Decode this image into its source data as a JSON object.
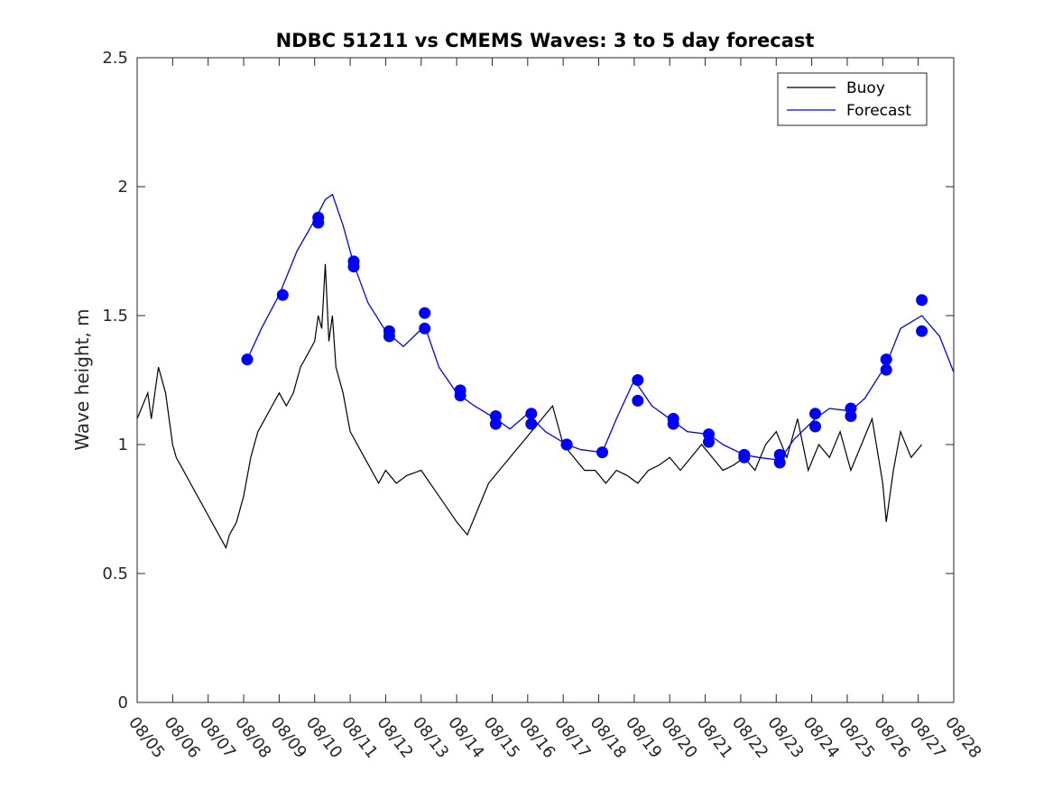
{
  "chart_data": {
    "type": "line",
    "title": "NDBC 51211 vs CMEMS Waves: 3 to 5 day forecast",
    "xlabel": "",
    "ylabel": "Wave height, m",
    "xlim": [
      0,
      23
    ],
    "ylim": [
      0,
      2.5
    ],
    "x_tick_labels": [
      "08/05",
      "08/06",
      "08/07",
      "08/08",
      "08/09",
      "08/10",
      "08/11",
      "08/12",
      "08/13",
      "08/14",
      "08/15",
      "08/16",
      "08/17",
      "08/18",
      "08/19",
      "08/20",
      "08/21",
      "08/22",
      "08/23",
      "08/24",
      "08/25",
      "08/26",
      "08/27",
      "08/28"
    ],
    "y_ticks": [
      0,
      0.5,
      1,
      1.5,
      2,
      2.5
    ],
    "y_tick_labels": [
      "0",
      "0.5",
      "1",
      "1.5",
      "2",
      "2.5"
    ],
    "legend": {
      "position": "top-right",
      "entries": [
        "Buoy",
        "Forecast"
      ]
    },
    "colors": {
      "buoy": "#000000",
      "forecast": "#0000ff",
      "marker": "#0000ff"
    },
    "series": [
      {
        "name": "Buoy",
        "x": [
          0,
          0.3,
          0.4,
          0.6,
          0.8,
          1.0,
          1.1,
          1.3,
          1.5,
          1.7,
          1.9,
          2.1,
          2.3,
          2.5,
          2.6,
          2.8,
          3.0,
          3.2,
          3.4,
          3.6,
          3.8,
          4.0,
          4.2,
          4.4,
          4.6,
          4.8,
          5.0,
          5.1,
          5.2,
          5.3,
          5.4,
          5.5,
          5.6,
          5.8,
          6.0,
          6.2,
          6.4,
          6.6,
          6.8,
          7.0,
          7.3,
          7.6,
          8.0,
          8.5,
          9.0,
          9.3,
          9.6,
          9.9,
          10.2,
          10.5,
          10.8,
          11.1,
          11.4,
          11.7,
          12.0,
          12.3,
          12.6,
          12.9,
          13.2,
          13.5,
          13.8,
          14.1,
          14.4,
          14.7,
          15.0,
          15.3,
          15.6,
          15.9,
          16.2,
          16.5,
          16.8,
          17.1,
          17.4,
          17.7,
          18.0,
          18.3,
          18.6,
          18.9,
          19.2,
          19.5,
          19.8,
          20.1,
          20.4,
          20.7,
          21.0,
          21.1,
          21.3,
          21.5,
          21.8,
          22.1
        ],
        "y": [
          1.1,
          1.2,
          1.1,
          1.3,
          1.2,
          1.0,
          0.95,
          0.9,
          0.85,
          0.8,
          0.75,
          0.7,
          0.65,
          0.6,
          0.65,
          0.7,
          0.8,
          0.95,
          1.05,
          1.1,
          1.15,
          1.2,
          1.15,
          1.2,
          1.3,
          1.35,
          1.4,
          1.5,
          1.45,
          1.7,
          1.4,
          1.5,
          1.3,
          1.2,
          1.05,
          1.0,
          0.95,
          0.9,
          0.85,
          0.9,
          0.85,
          0.88,
          0.9,
          0.8,
          0.7,
          0.65,
          0.75,
          0.85,
          0.9,
          0.95,
          1.0,
          1.05,
          1.1,
          1.15,
          1.0,
          0.95,
          0.9,
          0.9,
          0.85,
          0.9,
          0.88,
          0.85,
          0.9,
          0.92,
          0.95,
          0.9,
          0.95,
          1.0,
          0.95,
          0.9,
          0.92,
          0.95,
          0.9,
          1.0,
          1.05,
          0.95,
          1.1,
          0.9,
          1.0,
          0.95,
          1.05,
          0.9,
          1.0,
          1.1,
          0.85,
          0.7,
          0.9,
          1.05,
          0.95,
          1.0
        ]
      },
      {
        "name": "Forecast",
        "x": [
          3.1,
          3.5,
          4.0,
          4.5,
          5.0,
          5.3,
          5.5,
          5.8,
          6.1,
          6.5,
          7.0,
          7.5,
          8.1,
          8.5,
          9.0,
          9.5,
          10.1,
          10.5,
          11.0,
          11.5,
          12.1,
          12.5,
          13.1,
          13.5,
          14.0,
          14.5,
          15.1,
          15.5,
          16.1,
          16.5,
          17.1,
          17.5,
          18.1,
          18.5,
          19.1,
          19.5,
          20.1,
          20.5,
          21.1,
          21.5,
          22.1,
          22.6,
          23.0
        ],
        "y": [
          1.33,
          1.45,
          1.58,
          1.75,
          1.87,
          1.95,
          1.97,
          1.85,
          1.7,
          1.55,
          1.44,
          1.38,
          1.46,
          1.3,
          1.2,
          1.15,
          1.1,
          1.06,
          1.12,
          1.05,
          1.0,
          0.98,
          0.97,
          1.1,
          1.25,
          1.15,
          1.09,
          1.05,
          1.04,
          1.0,
          0.96,
          0.95,
          0.94,
          1.02,
          1.1,
          1.14,
          1.13,
          1.18,
          1.31,
          1.45,
          1.5,
          1.42,
          1.28
        ]
      },
      {
        "name": "Forecast markers",
        "x": [
          3.1,
          4.1,
          5.1,
          5.1,
          6.1,
          6.1,
          7.1,
          7.1,
          8.1,
          8.1,
          9.1,
          9.1,
          10.1,
          10.1,
          11.1,
          11.1,
          12.1,
          12.1,
          13.1,
          14.1,
          14.1,
          15.1,
          15.1,
          16.1,
          16.1,
          17.1,
          17.1,
          18.1,
          18.1,
          19.1,
          19.1,
          20.1,
          20.1,
          21.1,
          21.1,
          22.1,
          22.1
        ],
        "y": [
          1.33,
          1.58,
          1.88,
          1.86,
          1.71,
          1.69,
          1.44,
          1.42,
          1.51,
          1.45,
          1.21,
          1.19,
          1.11,
          1.08,
          1.12,
          1.08,
          1.0,
          1.0,
          0.97,
          1.25,
          1.17,
          1.1,
          1.08,
          1.04,
          1.01,
          0.96,
          0.95,
          0.96,
          0.93,
          1.12,
          1.07,
          1.14,
          1.11,
          1.33,
          1.29,
          1.56,
          1.44
        ]
      }
    ]
  }
}
